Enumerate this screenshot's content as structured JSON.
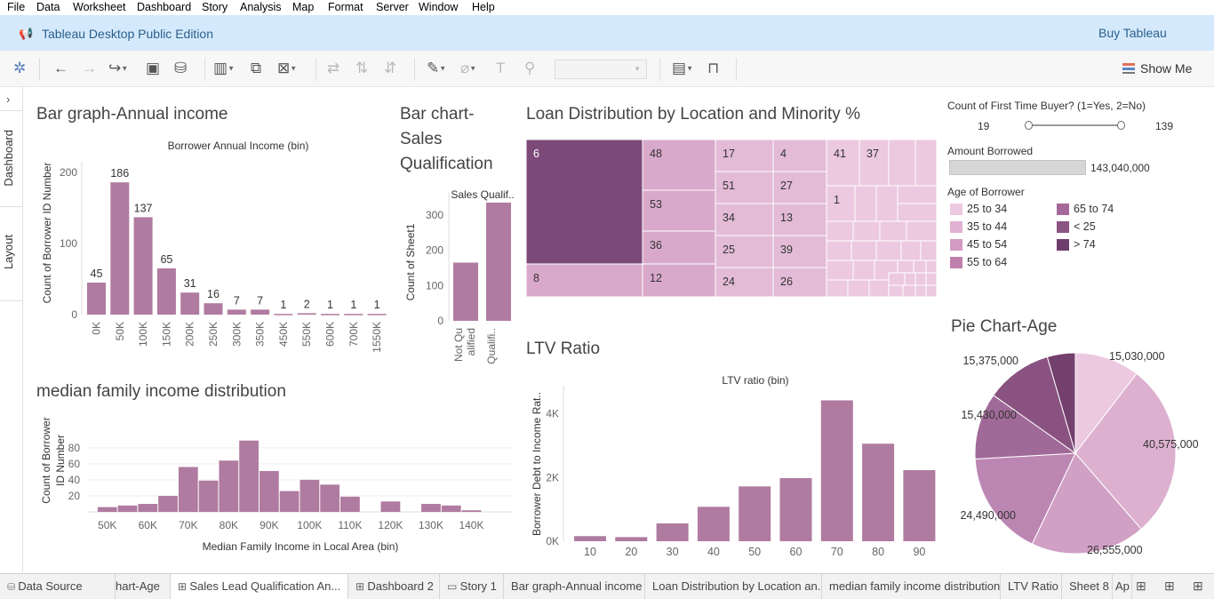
{
  "menu": [
    "File",
    "Data",
    "Worksheet",
    "Dashboard",
    "Story",
    "Analysis",
    "Map",
    "Format",
    "Server",
    "Window",
    "Help"
  ],
  "banner": {
    "edition": "Tableau Desktop Public Edition",
    "buy": "Buy Tableau"
  },
  "toolbar": {
    "show_me": "Show Me"
  },
  "sidebar": {
    "dashboard": "Dashboard",
    "layout": "Layout"
  },
  "sheets": {
    "annual_income_title": "Bar graph-Annual income",
    "sales_title": "Bar chart-\nSales\nQualification",
    "loan_title": "Loan Distribution by Location and Minority %",
    "median_title": "median family income distribution",
    "ltv_title": "LTV Ratio",
    "pie_title": "Pie Chart-Age"
  },
  "filters": {
    "first_time_label": "Count of First Time Buyer? (1=Yes, 2=No)",
    "first_time_min": "19",
    "first_time_max": "139",
    "amount_label": "Amount Borrowed",
    "amount_value": "143,040,000",
    "age_label": "Age of Borrower",
    "age_items": [
      {
        "label": "25 to 34",
        "color": "#ecc9e0"
      },
      {
        "label": "35 to 44",
        "color": "#e0b1d1"
      },
      {
        "label": "45 to 54",
        "color": "#d39bc2"
      },
      {
        "label": "55 to 64",
        "color": "#bf80ad"
      },
      {
        "label": "65 to 74",
        "color": "#a56898"
      },
      {
        "label": "< 25",
        "color": "#8a5483"
      },
      {
        "label": "> 74",
        "color": "#6e3f6c"
      }
    ]
  },
  "tabs": [
    {
      "label": "Data Source",
      "icon": "database-icon"
    },
    {
      "label": "hart-Age",
      "icon": ""
    },
    {
      "label": "Sales Lead Qualification An...",
      "icon": "dashboard-icon"
    },
    {
      "label": "Dashboard 2",
      "icon": "dashboard-icon"
    },
    {
      "label": "Story 1",
      "icon": "story-icon"
    },
    {
      "label": "Bar graph-Annual income",
      "icon": ""
    },
    {
      "label": "Loan Distribution by Location an...",
      "icon": ""
    },
    {
      "label": "median family income distribution",
      "icon": ""
    },
    {
      "label": "LTV Ratio",
      "icon": ""
    },
    {
      "label": "Sheet 8",
      "icon": ""
    },
    {
      "label": "Ap",
      "icon": ""
    }
  ],
  "chart_data": [
    {
      "id": "annual",
      "type": "bar",
      "title": "Borrower Annual Income (bin)",
      "ylabel": "Count of Borrower ID Number",
      "categories": [
        "0K",
        "50K",
        "100K",
        "150K",
        "200K",
        "250K",
        "300K",
        "350K",
        "450K",
        "550K",
        "600K",
        "700K",
        "1550K"
      ],
      "values": [
        45,
        186,
        137,
        65,
        31,
        16,
        7,
        7,
        1,
        2,
        1,
        1,
        1
      ],
      "yticks": [
        0,
        100,
        200
      ],
      "ylim": [
        0,
        210
      ],
      "color": "#b07ba0"
    },
    {
      "id": "sales",
      "type": "bar",
      "title": "Sales Qualif..",
      "ylabel": "Count of Sheet1",
      "categories": [
        "Not Qu\nalified",
        "Qualifi.."
      ],
      "values": [
        165,
        335
      ],
      "yticks": [
        0,
        100,
        200,
        300
      ],
      "ylim": [
        0,
        350
      ],
      "color": "#b07ba0"
    },
    {
      "id": "treemap",
      "type": "heatmap",
      "labels": [
        "6",
        "48",
        "53",
        "36",
        "8",
        "12",
        "17",
        "51",
        "34",
        "25",
        "24",
        "4",
        "27",
        "13",
        "39",
        "26",
        "41",
        "37",
        "1"
      ]
    },
    {
      "id": "median",
      "type": "bar",
      "xlabel": "Median Family Income in Local Area (bin)",
      "ylabel": "Count of Borrower ID Number",
      "x": [
        50,
        55,
        60,
        65,
        70,
        75,
        80,
        85,
        90,
        95,
        100,
        105,
        110,
        115,
        120,
        125,
        130,
        135,
        140
      ],
      "values": [
        6,
        8,
        10,
        20,
        56,
        39,
        64,
        89,
        51,
        26,
        40,
        34,
        19,
        0,
        13,
        0,
        10,
        8,
        2
      ],
      "xticks": [
        "50K",
        "60K",
        "70K",
        "80K",
        "90K",
        "100K",
        "110K",
        "120K",
        "130K",
        "140K"
      ],
      "yticks": [
        20,
        40,
        60,
        80
      ],
      "ylim": [
        0,
        92
      ],
      "color": "#b07ba0"
    },
    {
      "id": "ltv",
      "type": "bar",
      "title": "LTV ratio (bin)",
      "ylabel": "Borrower Debt to Income Rat..",
      "categories": [
        "10",
        "20",
        "30",
        "40",
        "50",
        "60",
        "70",
        "80",
        "90"
      ],
      "values": [
        160,
        130,
        560,
        1080,
        1720,
        1980,
        4420,
        3060,
        2230
      ],
      "yticks": [
        "0K",
        "2K",
        "4K"
      ],
      "ylim": [
        0,
        4600
      ],
      "color": "#b07ba0"
    },
    {
      "id": "pie",
      "type": "pie",
      "slices": [
        {
          "label": "15,030,000",
          "value": 15030000,
          "color": "#ecc9e0"
        },
        {
          "label": "40,575,000",
          "value": 40575000,
          "color": "#ddb0d0"
        },
        {
          "label": "26,555,000",
          "value": 26555000,
          "color": "#d1a0c5"
        },
        {
          "label": "24,490,000",
          "value": 24490000,
          "color": "#bc86b2"
        },
        {
          "label": "15,430,000",
          "value": 15430000,
          "color": "#a06a98"
        },
        {
          "label": "15,375,000",
          "value": 15375000,
          "color": "#895280"
        },
        {
          "label": "",
          "value": 6500000,
          "color": "#733f6d"
        }
      ]
    }
  ]
}
